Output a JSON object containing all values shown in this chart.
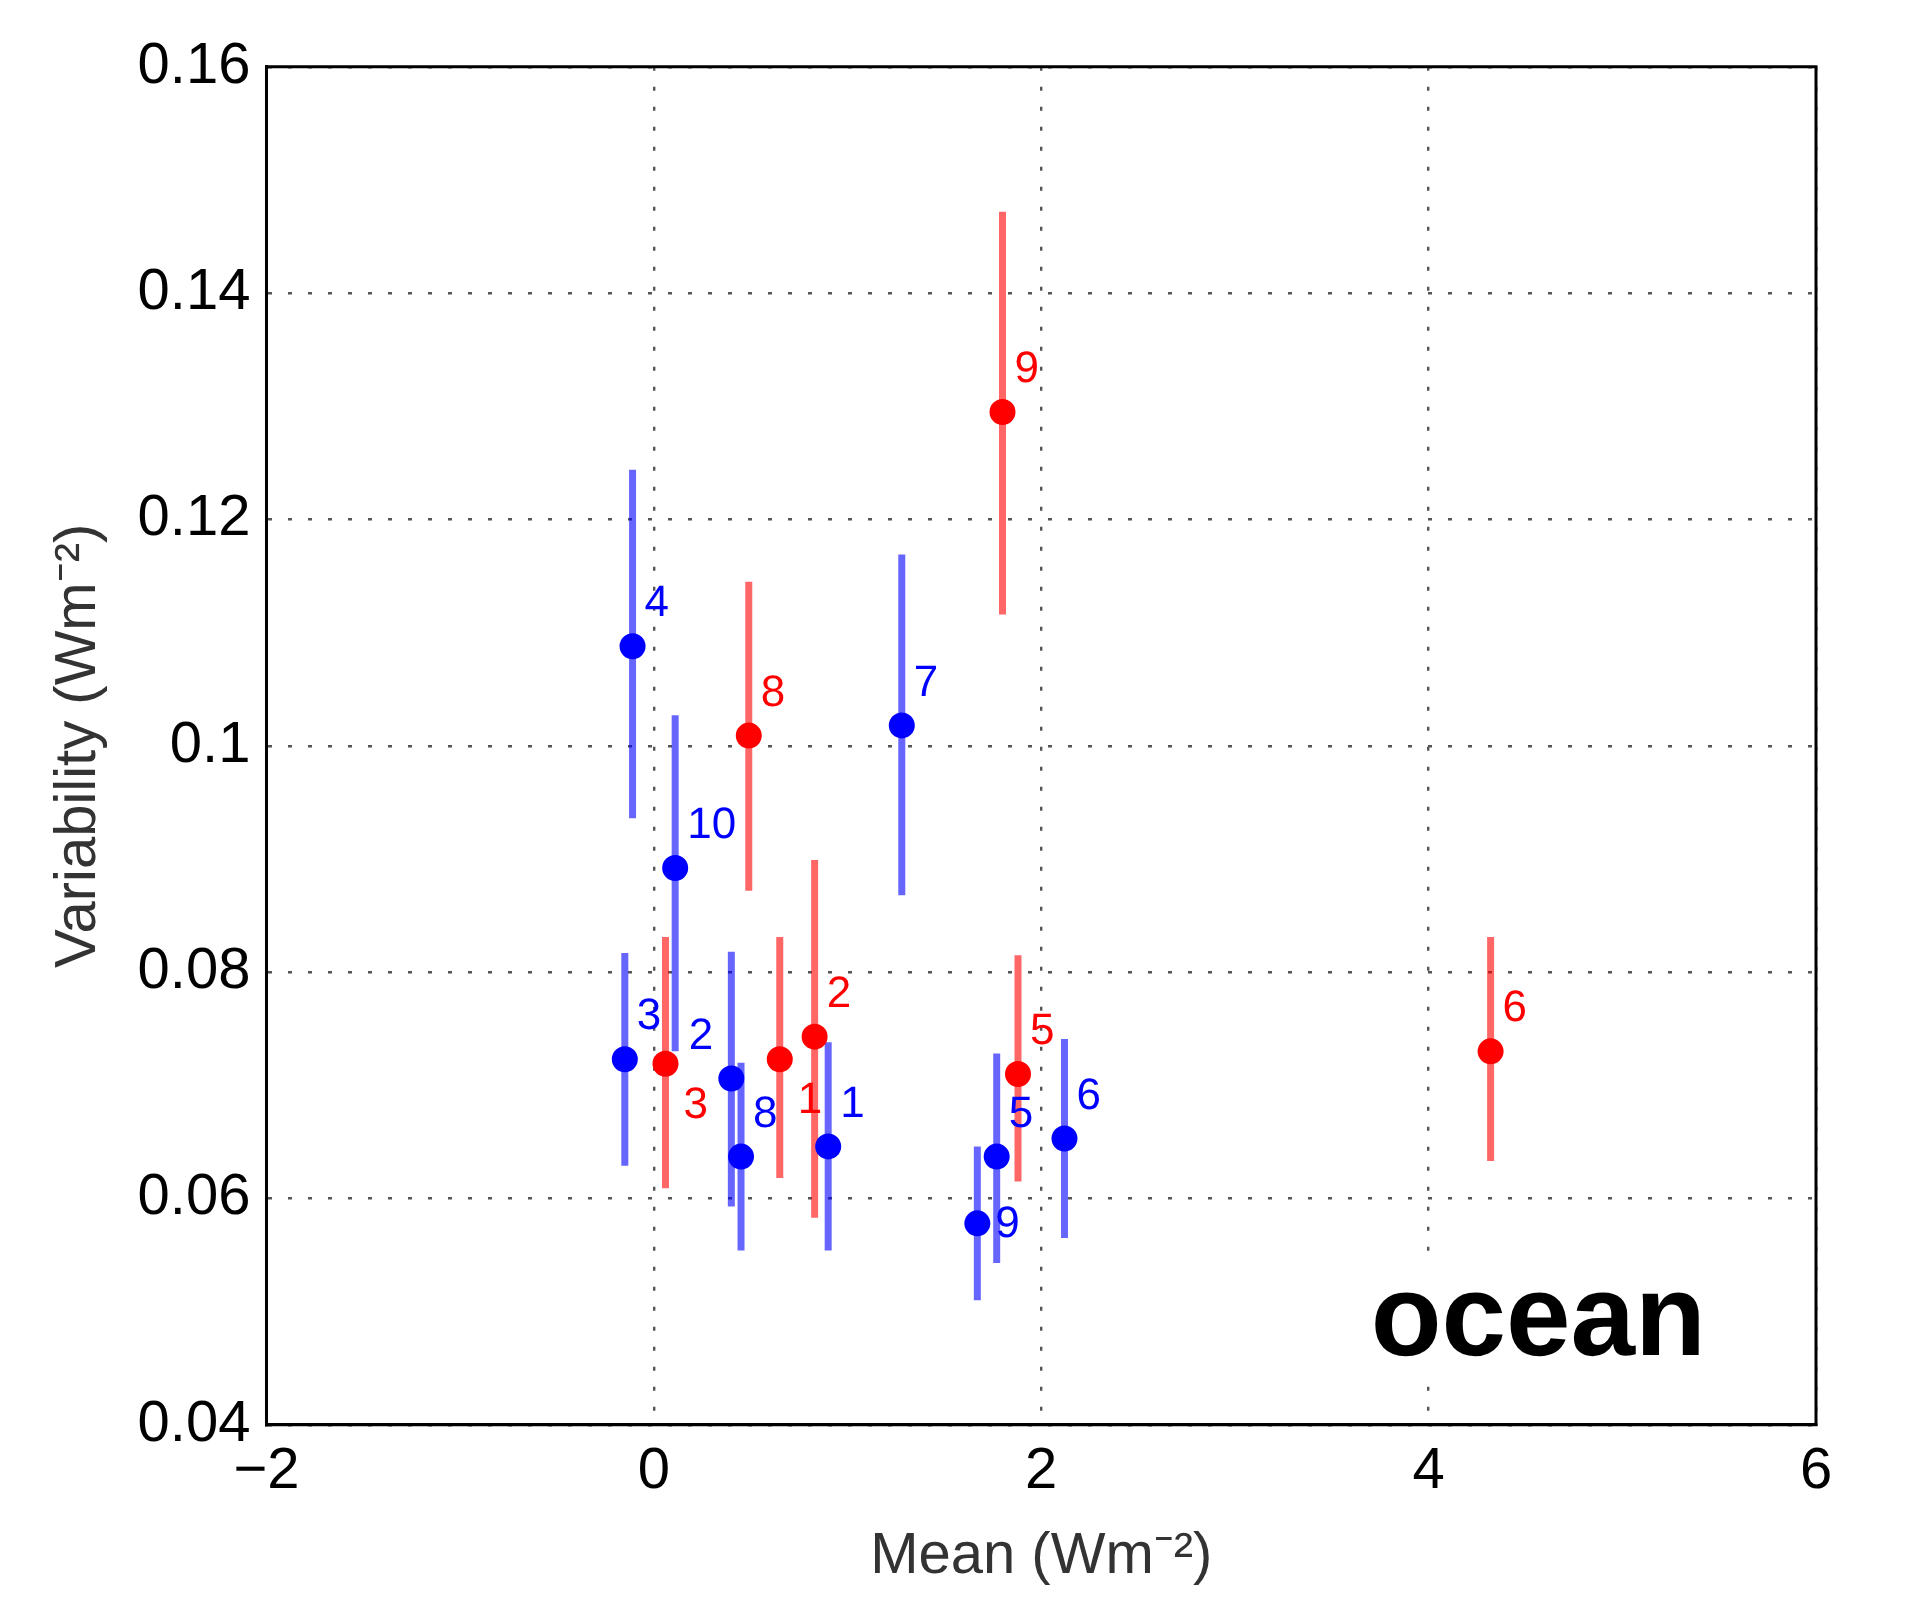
{
  "chart_data": {
    "type": "scatter",
    "xlabel": "Mean (Wm⁻²)",
    "ylabel": "Variability (Wm⁻²)",
    "xlim": [
      -2,
      6
    ],
    "xticks": [
      {
        "value": -2,
        "label": "−2"
      },
      0,
      2,
      4,
      6
    ],
    "ylim": [
      0.04,
      0.16
    ],
    "yticks": [
      0.04,
      0.06,
      0.08,
      0.1,
      0.12,
      0.14,
      0.16
    ],
    "grid": true,
    "marker": "circle",
    "series": [
      {
        "color": "#0000ff",
        "x": [
          0.9,
          0.4,
          -0.15,
          -0.11,
          1.77,
          2.12,
          1.28,
          0.45,
          1.67,
          0.11
        ],
        "values": [
          0.0646,
          0.0706,
          0.0723,
          0.1088,
          0.0637,
          0.0653,
          0.1018,
          0.0637,
          0.0578,
          0.0892
        ],
        "errors": [
          [
            0.0554,
            0.0738
          ],
          [
            0.0593,
            0.0818
          ],
          [
            0.0629,
            0.0817
          ],
          [
            0.0936,
            0.1244
          ],
          [
            0.0543,
            0.0728
          ],
          [
            0.0565,
            0.0741
          ],
          [
            0.0868,
            0.1169
          ],
          [
            0.0554,
            0.072
          ],
          [
            0.051,
            0.0646
          ],
          [
            0.073,
            0.1027
          ]
        ]
      },
      {
        "color": "#ff0000",
        "x": [
          0.65,
          0.83,
          0.06,
          1.88,
          4.32,
          0.49,
          1.8
        ],
        "values": [
          0.0723,
          0.0743,
          0.0719,
          0.071,
          0.073,
          0.1009,
          0.1295
        ],
        "errors": [
          [
            0.0618,
            0.0831
          ],
          [
            0.0583,
            0.0899
          ],
          [
            0.0609,
            0.0831
          ],
          [
            0.0615,
            0.0815
          ],
          [
            0.0633,
            0.0831
          ],
          [
            0.0872,
            0.1145
          ],
          [
            0.1116,
            0.1472
          ]
        ]
      }
    ],
    "annotations": [
      {
        "text": "1",
        "x": 0.9,
        "y": 0.0646
      },
      {
        "text": "2",
        "x": 0.4,
        "y": 0.0706
      },
      {
        "text": "3",
        "x": -0.15,
        "y": 0.0723
      },
      {
        "text": "4",
        "x": -0.11,
        "y": 0.1088
      },
      {
        "text": "5",
        "x": 1.77,
        "y": 0.0637
      },
      {
        "text": "6",
        "x": 2.12,
        "y": 0.0653
      },
      {
        "text": "7",
        "x": 1.28,
        "y": 0.1018
      },
      {
        "text": "8",
        "x": 0.45,
        "y": 0.0637
      },
      {
        "text": "9",
        "x": 1.67,
        "y": 0.0578
      },
      {
        "text": "10",
        "x": 0.11,
        "y": 0.0892
      },
      {
        "text": "1",
        "x": 0.65,
        "y": 0.0723
      },
      {
        "text": "2",
        "x": 0.83,
        "y": 0.0743
      },
      {
        "text": "3",
        "x": 0.06,
        "y": 0.0719
      },
      {
        "text": "5",
        "x": 1.88,
        "y": 0.071
      },
      {
        "text": "6",
        "x": 4.32,
        "y": 0.073
      },
      {
        "text": "8",
        "x": 0.49,
        "y": 0.1009
      },
      {
        "text": "9",
        "x": 1.8,
        "y": 0.1295
      },
      "ocean"
    ]
  }
}
